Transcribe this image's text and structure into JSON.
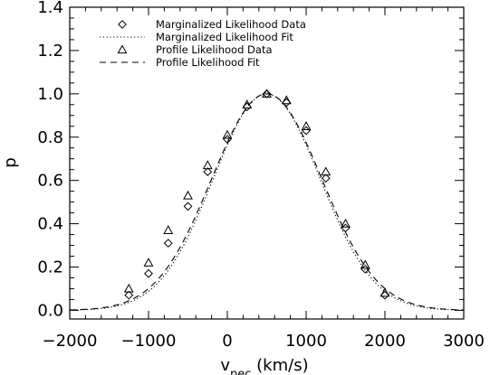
{
  "chart_data": {
    "type": "line",
    "title": "",
    "xlabel": "v",
    "xlabel_sub": "pec",
    "xlabel_unit": " (km/s)",
    "ylabel": "p",
    "xlim": [
      -2000,
      3000
    ],
    "ylim": [
      -0.04,
      1.4
    ],
    "xticks": [
      -2000,
      -1000,
      0,
      1000,
      2000,
      3000
    ],
    "xtick_labels": [
      "−2000",
      "−1000",
      "0",
      "1000",
      "2000",
      "3000"
    ],
    "yticks": [
      0.0,
      0.2,
      0.4,
      0.6,
      0.8,
      1.0,
      1.2,
      1.4
    ],
    "ytick_labels": [
      "0.0",
      "0.2",
      "0.4",
      "0.6",
      "0.8",
      "1.0",
      "1.2",
      "1.4"
    ],
    "grid": false,
    "legend_position": "top-left",
    "series": [
      {
        "name": "Marginalized Likelihood Data",
        "kind": "markers",
        "marker": "diamond",
        "x": [
          -1250,
          -1000,
          -750,
          -500,
          -250,
          0,
          250,
          500,
          750,
          1000,
          1250,
          1500,
          1750,
          2000
        ],
        "y": [
          0.07,
          0.17,
          0.31,
          0.48,
          0.64,
          0.79,
          0.94,
          1.0,
          0.96,
          0.83,
          0.61,
          0.38,
          0.19,
          0.07
        ]
      },
      {
        "name": "Marginalized Likelihood Fit",
        "kind": "line",
        "dash": "dotted",
        "gaussian": {
          "amplitude": 1.0,
          "mean": 500,
          "sigma": 680
        },
        "x_range": [
          -2000,
          3000
        ]
      },
      {
        "name": "Profile Likelihood Data",
        "kind": "markers",
        "marker": "triangle",
        "x": [
          -1250,
          -1000,
          -750,
          -500,
          -250,
          0,
          250,
          500,
          750,
          1000,
          1250,
          1500,
          1750,
          2000
        ],
        "y": [
          0.1,
          0.22,
          0.37,
          0.53,
          0.67,
          0.81,
          0.95,
          1.0,
          0.97,
          0.85,
          0.64,
          0.4,
          0.21,
          0.08
        ]
      },
      {
        "name": "Profile Likelihood Fit",
        "kind": "line",
        "dash": "dashed",
        "gaussian": {
          "amplitude": 1.0,
          "mean": 500,
          "sigma": 700
        },
        "x_range": [
          -2000,
          3000
        ]
      }
    ]
  }
}
